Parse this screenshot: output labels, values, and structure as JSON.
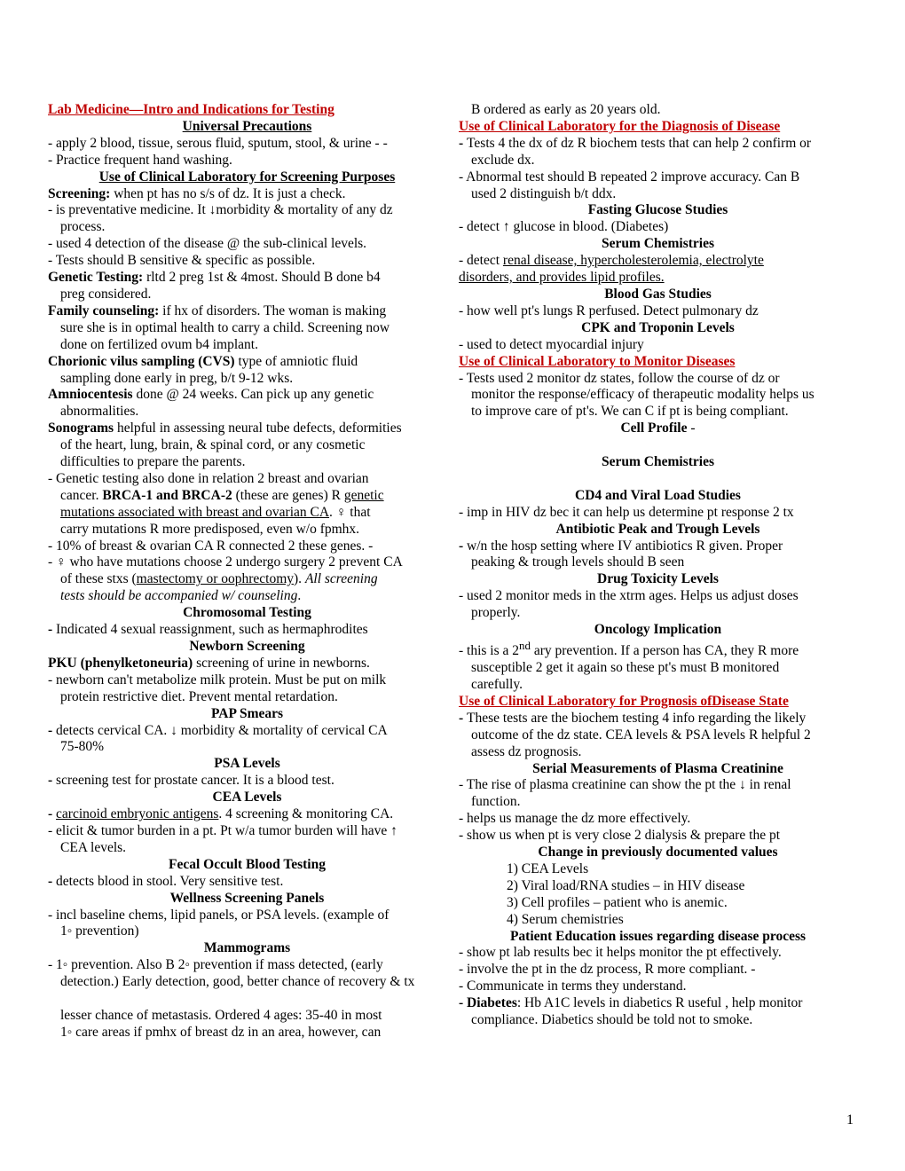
{
  "typography": {
    "font_family": "Times New Roman",
    "base_fontsize_pt": 12,
    "line_height": 1.22,
    "text_color": "#000000",
    "red_color": "#c00000",
    "background_color": "#ffffff"
  },
  "page_number": "1",
  "col1": {
    "h1": "Lab Medicine—Intro and Indications for Testing",
    "h2": "Universal Precautions",
    "l1": "- apply 2 blood, tissue, serous fluid, sputum, stool, & urine - -",
    "l2": "- Practice frequent hand washing.",
    "h3": "Use of Clinical Laboratory for Screening Purposes",
    "l3a": "Screening:",
    "l3b": " when pt has no s/s of dz. It is just a check.",
    "l4": "- is preventative medicine. It ↓morbidity & mortality of any dz",
    "l4b": "process.",
    "l5": "- used 4 detection of the disease @ the sub-clinical levels.",
    "l6": "-  Tests should B sensitive & specific as possible.",
    "l7a": "Genetic Testing:",
    "l7b": "  rltd 2 preg 1st & 4most. Should B done b4",
    "l7c": "preg considered.",
    "l8a": "Family counseling:",
    "l8b": "   if  hx of disorders. The woman is making",
    "l8c": "sure she is in optimal health to carry a child.  Screening now",
    "l8d": "done on fertilized ovum b4 implant.",
    "l9a": "Chorionic vilus sampling (CVS)",
    "l9b": " type of amniotic fluid",
    "l9c": "sampling done early in preg, b/t  9-12 wks.",
    "l10a": "Amniocentesis",
    "l10b": " done @ 24 weeks.  Can pick up any genetic",
    "l10c": "abnormalities.",
    "l11a": "Sonograms",
    "l11b": " helpful in assessing neural tube defects, deformities",
    "l11c": "of the heart, lung, brain, & spinal cord, or any cosmetic",
    "l11d": "difficulties to prepare the parents.",
    "l12a": "- Genetic testing  also done in relation 2 breast and ovarian",
    "l12b_pre": "cancer.  ",
    "l12b_bold": "BRCA-1 and BRCA-2",
    "l12b_post": " (these are genes) R ",
    "l12b_u": "genetic",
    "l12c_u": "mutations associated with breast and ovarian CA",
    "l12c_post": ".   ♀ that",
    "l12d": "carry mutations R more predisposed, even w/o fpmhx.",
    "l13": "- 10% of breast & ovarian CA R connected 2 these genes.   -",
    "l14": "- ♀ who have mutations choose 2 undergo surgery 2 prevent CA",
    "l14b_pre": "of these stxs (",
    "l14b_u": "mastectomy or oophrectomy",
    "l14b_post": ").  ",
    "l14b_i": "All screening",
    "l14c_i": "tests should be accompanied w/ counseling",
    "l14c_post": ".",
    "h4": "Chromosomal Testing",
    "l15a": "- ",
    "l15b": "Indicated 4 sexual reassignment, such as hermaphrodites",
    "h5": "Newborn Screening",
    "l16a": "PKU (phenylketoneuria)",
    "l16b": " screening of urine in newborns.",
    "l17": "- newborn can't metabolize milk protein. Must be put on milk",
    "l17b": "protein restrictive diet. Prevent mental retardation.",
    "h6": "PAP Smears",
    "l18a": "- ",
    "l18b": "detects cervical CA. ↓ morbidity & mortality of cervical CA",
    "l18c": "75-80%",
    "h7": "PSA Levels",
    "l19a": " - ",
    "l19b": "screening test for prostate cancer.  It is a blood test.",
    "h8": "CEA Levels",
    "l20a": "- ",
    "l20b": "carcinoid embryonic antigens",
    "l20c": ". 4 screening & monitoring CA.",
    "l21": "- elicit & tumor burden in a pt. Pt w/a tumor burden will have ↑",
    "l21b": "CEA levels.",
    "h9": "Fecal Occult Blood Testing",
    "l22a": "- ",
    "l22b": "detects blood in stool. Very sensitive test.",
    "h10": "Wellness Screening Panels",
    "l23": "- incl baseline chems, lipid panels, or PSA levels.  (example of",
    "l23b": "1◦ prevention)",
    "h11": "Mammograms",
    "l24": "- 1◦ prevention.  Also B 2◦ prevention if mass detected, (early",
    "l24b": "detection.)  Early detection, good, better chance of recovery & tx",
    "l24c": "lesser chance of metastasis. Ordered 4 ages:  35-40 in most"
  },
  "col2": {
    "l1": "1◦ care areas if  pmhx of breast dz in an area, however, can",
    "l1b": "B ordered as early as 20 years old.",
    "h1": "Use of Clinical Laboratory for the Diagnosis of Disease",
    "l2a": "- ",
    "l2b": "Tests 4 the dx of dz R biochem tests that can help 2 confirm or",
    "l2c": "exclude dx.",
    "l3": "- Abnormal test should B repeated 2 improve accuracy.  Can B",
    "l3b": "used 2 distinguish b/t ddx.",
    "h2": "Fasting Glucose Studies",
    "l4": "- detect ↑ glucose in blood. (Diabetes)",
    "h3": "Serum Chemistries",
    "l5a": "- detect ",
    "l5b": "renal disease, hypercholesterolemia, electrolyte",
    "l5c": " disorders, and provides lipid profiles.",
    "h4": "Blood Gas Studies",
    "l6": "- how well  pt's lungs R perfused. Detect pulmonary dz",
    "h5": "CPK and Troponin Levels",
    "l7": "- used to detect myocardial injury",
    "h6": "Use of Clinical Laboratory to Monitor Diseases",
    "l8": "- Tests used 2 monitor dz states, follow the course of dz or",
    "l8b": "monitor the response/efficacy of therapeutic modality helps us",
    "l8c": "to improve care of  pt's.  We can C if  pt is being compliant.",
    "h7": "Cell Profile",
    "h7b": " -",
    "h8": "Serum Chemistries",
    "h9": "CD4 and Viral Load Studies",
    "l9": "- imp in HIV dz bec it can help us determine pt response 2 tx",
    "h10": "Antibiotic Peak and Trough Levels",
    "l10a": "- ",
    "l10b": "w/n  the hosp setting where IV antibiotics R given.  Proper",
    "l10c": "peaking & trough levels should B seen",
    "h11": "Drug Toxicity Levels",
    "l11": "- used 2 monitor meds in the xtrm ages.  Helps us adjust doses",
    "l11b": "properly.",
    "h12": "Oncology Implication",
    "l12a": "- this is a 2",
    "l12sup": "nd",
    "l12b": " ary  prevention.  If a person has CA, they R more",
    "l12c": "susceptible 2 get it again so these pt's must B monitored",
    "l12d": "carefully.",
    "h13": "Use of Clinical Laboratory for Prognosis ofDisease State",
    "l13a": "- ",
    "l13b": "These tests are the biochem testing 4  info regarding the likely",
    "l13c": "outcome of the dz state.  CEA levels & PSA levels R helpful 2",
    "l13d": "assess dz prognosis.",
    "h14": "Serial Measurements of Plasma Creatinine",
    "l14": "- The rise of plasma creatinine can show the pt the ↓ in renal",
    "l14b": "function.",
    "l15": "- helps us manage the dz more effectively.",
    "l16": "- show us when pt is very close 2 dialysis & prepare the pt",
    "h15": "Change in previously documented values",
    "li1": "1)   CEA Levels",
    "li2": "2)   Viral load/RNA studies – in HIV disease",
    "li3": "3)   Cell profiles – patient who is anemic.",
    "li4": "4)   Serum chemistries",
    "h16": "Patient Education issues regarding disease process",
    "l17": "- show  pt lab results bec it helps monitor the pt effectively.",
    "l18": "- involve the pt in the dz process, R more compliant.  -",
    "l19": "- Communicate in terms they understand.",
    "l20a": "- Diabetes",
    "l20b": ": Hb A1C levels in diabetics R useful , help monitor",
    "l20c": "compliance.  Diabetics should be told not to smoke."
  }
}
